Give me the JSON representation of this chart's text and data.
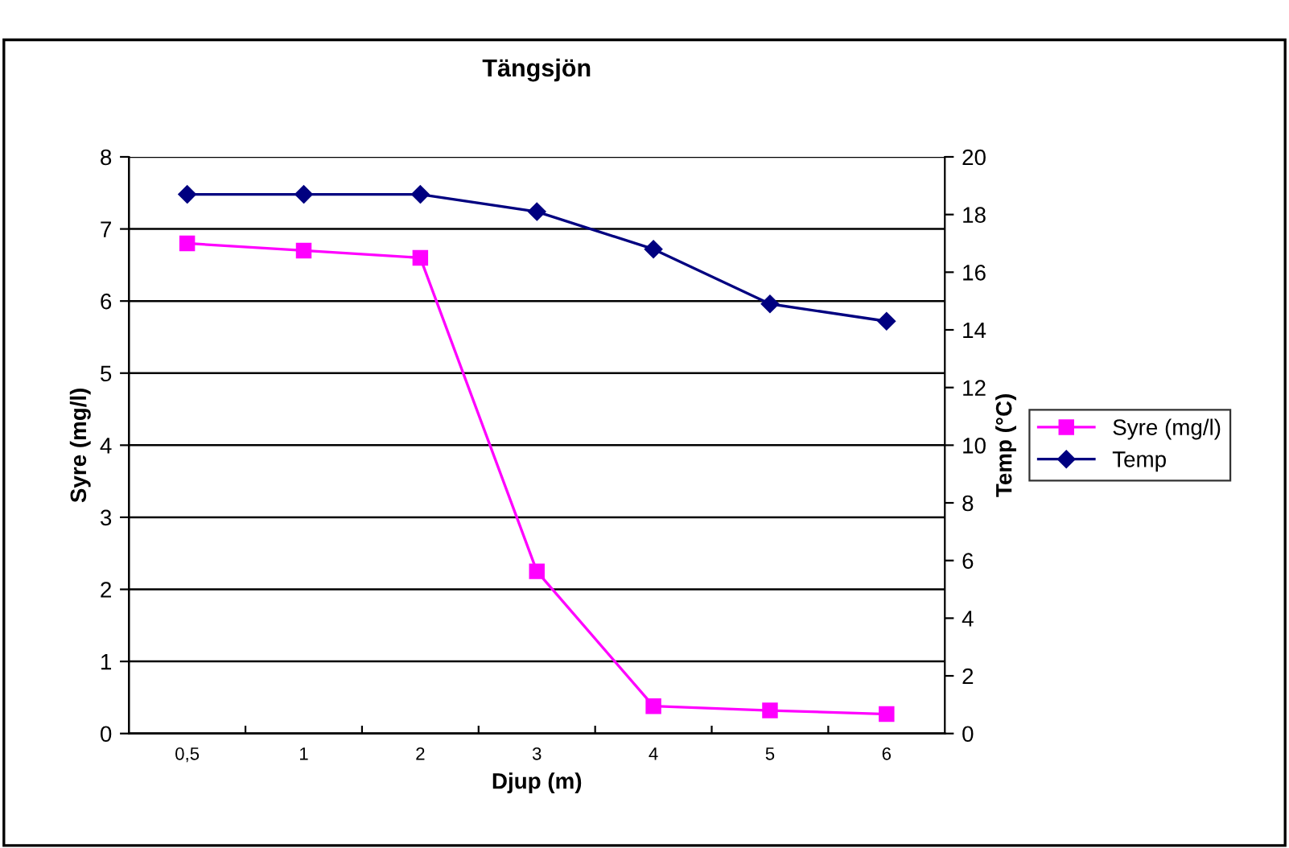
{
  "chart_data": {
    "type": "line",
    "title": "Tängsjön",
    "xlabel": "Djup (m)",
    "ylabel": "Syre (mg/l)",
    "y2label": "Temp (°C)",
    "categories": [
      "0,5",
      "1",
      "2",
      "3",
      "4",
      "5",
      "6"
    ],
    "series": [
      {
        "name": "Syre (mg/l)",
        "color": "#ff00ff",
        "marker": "square",
        "values": [
          6.8,
          6.7,
          6.6,
          2.25,
          0.38,
          0.32,
          0.27
        ]
      },
      {
        "name": "Temp",
        "color": "#000080",
        "marker": "diamond",
        "axis": "y2",
        "values": [
          18.7,
          18.7,
          18.7,
          18.1,
          16.8,
          14.9,
          14.3
        ]
      }
    ],
    "ylim": [
      0,
      8
    ],
    "yticks": [
      0,
      1,
      2,
      3,
      4,
      5,
      6,
      7,
      8
    ],
    "y2lim": [
      0,
      20
    ],
    "y2ticks": [
      0,
      2,
      4,
      6,
      8,
      10,
      12,
      14,
      16,
      18,
      20
    ],
    "grid": "y",
    "legend": "right",
    "line_style": "solid"
  }
}
